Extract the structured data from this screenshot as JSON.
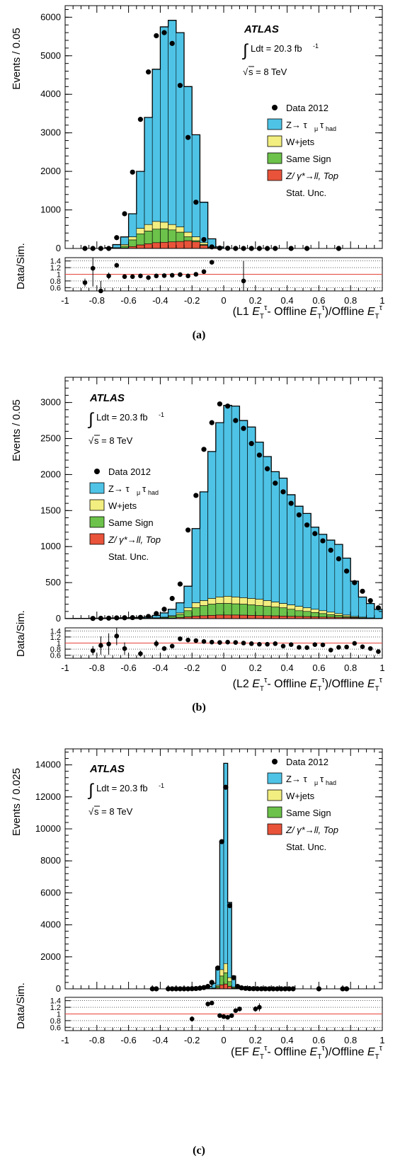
{
  "figure": {
    "atlas_label": "ATLAS",
    "lumi_label": "Ldt = 20.3 fb",
    "lumi_exp": "-1",
    "energy_label": "s = 8 TeV",
    "ratio_ylabel": "Data/Sim.",
    "legend": {
      "data": "Data 2012",
      "ztt": "Z→ τ",
      "ztt_sub1": "μ",
      "ztt_mid": "τ",
      "ztt_sub2": "had",
      "wjets": "W+jets",
      "ss": "Same Sign",
      "zll": "Z/ γ*→ll, Top",
      "unc": "Stat. Unc."
    },
    "colors": {
      "ztt": "#4ec3e6",
      "wjets": "#f2ee80",
      "ss": "#6cc24a",
      "zll": "#e8533a",
      "ratio_line": "#e8433a"
    }
  },
  "chart_data": [
    {
      "type": "bar",
      "panel": "a",
      "caption": "(a)",
      "xlabel_prefix": "(L1 ",
      "xlabel_suffix": "- Offline ",
      "xlabel_end": ")/Offline ",
      "ylabel": "Events / 0.05",
      "xlim": [
        -1,
        1
      ],
      "ylim": [
        0,
        6300
      ],
      "yticks": [
        0,
        1000,
        2000,
        3000,
        4000,
        5000,
        6000
      ],
      "xticks": [
        -1,
        -0.8,
        -0.6,
        -0.4,
        -0.2,
        0,
        0.2,
        0.4,
        0.6,
        0.8,
        1
      ],
      "ratio_ylim": [
        0.5,
        1.5
      ],
      "ratio_yticks": [
        0.6,
        0.8,
        1,
        1.2,
        1.4
      ],
      "legend_position": "right",
      "bin_width": 0.05,
      "bins_start": [
        -0.75,
        -0.7,
        -0.65,
        -0.6,
        -0.55,
        -0.5,
        -0.45,
        -0.4,
        -0.35,
        -0.3,
        -0.25,
        -0.2,
        -0.15,
        -0.1,
        -0.05
      ],
      "stack_total": [
        20,
        100,
        300,
        900,
        2000,
        3400,
        4650,
        5750,
        5920,
        5600,
        4200,
        2950,
        1200,
        250,
        40
      ],
      "stack_bkg": [
        5,
        20,
        100,
        300,
        520,
        620,
        700,
        680,
        620,
        560,
        420,
        300,
        150,
        40,
        10
      ],
      "stack_ss": [
        3,
        12,
        60,
        220,
        380,
        450,
        500,
        510,
        480,
        420,
        300,
        200,
        100,
        25,
        5
      ],
      "stack_zll": [
        1,
        4,
        15,
        50,
        90,
        120,
        150,
        160,
        170,
        180,
        200,
        170,
        80,
        20,
        3
      ],
      "data_x": [
        -0.875,
        -0.825,
        -0.775,
        -0.725,
        -0.675,
        -0.625,
        -0.575,
        -0.525,
        -0.475,
        -0.425,
        -0.375,
        -0.325,
        -0.275,
        -0.225,
        -0.175,
        -0.125,
        -0.075,
        -0.025,
        0.025,
        0.075,
        0.125,
        0.175,
        0.225,
        0.275,
        0.325,
        0.425,
        0.525,
        0.725
      ],
      "data_y": [
        0,
        0,
        0,
        0,
        280,
        900,
        1980,
        3350,
        4580,
        5520,
        5600,
        5320,
        4230,
        2880,
        1200,
        230,
        40,
        10,
        5,
        0,
        0,
        0,
        0,
        0,
        0,
        0,
        0,
        0
      ],
      "ratio_x": [
        -0.875,
        -0.825,
        -0.775,
        -0.725,
        -0.675,
        -0.625,
        -0.575,
        -0.525,
        -0.475,
        -0.425,
        -0.375,
        -0.325,
        -0.275,
        -0.225,
        -0.175,
        -0.125,
        -0.075,
        0.125
      ],
      "ratio_y": [
        0.75,
        1.18,
        0.5,
        0.95,
        1.27,
        0.93,
        0.93,
        0.95,
        0.9,
        0.95,
        0.96,
        0.97,
        0.99,
        0.95,
        1.0,
        1.08,
        1.36,
        0.8
      ],
      "ratio_err": [
        0.12,
        0.55,
        0.3,
        0.1,
        0.05,
        0.0,
        0.0,
        0.0,
        0.0,
        0.0,
        0.0,
        0.0,
        0.0,
        0.0,
        0.0,
        0.0,
        0.06,
        0.6
      ]
    },
    {
      "type": "bar",
      "panel": "b",
      "caption": "(b)",
      "xlabel_prefix": "(L2 ",
      "xlabel_suffix": "- Offline ",
      "xlabel_end": ")/Offline ",
      "ylabel": "Events / 0.05",
      "xlim": [
        -1,
        1
      ],
      "ylim": [
        0,
        3350
      ],
      "yticks": [
        0,
        500,
        1000,
        1500,
        2000,
        2500,
        3000
      ],
      "xticks": [
        -1,
        -0.8,
        -0.6,
        -0.4,
        -0.2,
        0,
        0.2,
        0.4,
        0.6,
        0.8,
        1
      ],
      "ratio_ylim": [
        0.5,
        1.5
      ],
      "ratio_yticks": [
        0.6,
        0.8,
        1,
        1.2,
        1.4
      ],
      "legend_position": "left",
      "bin_width": 0.05,
      "bins_start": [
        -1.0,
        -0.95,
        -0.9,
        -0.85,
        -0.8,
        -0.75,
        -0.7,
        -0.65,
        -0.6,
        -0.55,
        -0.5,
        -0.45,
        -0.4,
        -0.35,
        -0.3,
        -0.25,
        -0.2,
        -0.15,
        -0.1,
        -0.05,
        0.0,
        0.05,
        0.1,
        0.15,
        0.2,
        0.25,
        0.3,
        0.35,
        0.4,
        0.45,
        0.5,
        0.55,
        0.6,
        0.65,
        0.7,
        0.75,
        0.8,
        0.85,
        0.9,
        0.95
      ],
      "stack_total": [
        2,
        3,
        4,
        5,
        6,
        8,
        10,
        12,
        15,
        18,
        25,
        45,
        80,
        130,
        220,
        450,
        1250,
        1760,
        2320,
        2720,
        2960,
        2950,
        2750,
        2660,
        2450,
        2250,
        2040,
        1950,
        1720,
        1560,
        1460,
        1270,
        1170,
        1090,
        1030,
        840,
        520,
        300,
        210,
        130
      ],
      "stack_bkg": [
        0,
        0,
        0,
        0,
        1,
        1,
        2,
        3,
        4,
        6,
        8,
        12,
        20,
        40,
        80,
        150,
        220,
        250,
        280,
        300,
        310,
        300,
        290,
        280,
        270,
        250,
        230,
        210,
        190,
        170,
        150,
        130,
        110,
        90,
        70,
        50,
        30,
        20,
        10,
        5
      ],
      "stack_ss": [
        0,
        0,
        0,
        0,
        0,
        1,
        1,
        2,
        3,
        4,
        5,
        8,
        15,
        30,
        60,
        110,
        150,
        180,
        200,
        210,
        210,
        205,
        200,
        190,
        180,
        170,
        160,
        150,
        130,
        110,
        100,
        85,
        70,
        55,
        45,
        30,
        18,
        10,
        5,
        3
      ],
      "stack_zll": [
        0,
        0,
        0,
        0,
        0,
        0,
        0,
        1,
        1,
        1,
        2,
        3,
        5,
        8,
        15,
        25,
        35,
        40,
        45,
        50,
        50,
        50,
        48,
        45,
        42,
        40,
        38,
        35,
        32,
        30,
        28,
        25,
        22,
        20,
        18,
        15,
        10,
        7,
        5,
        3
      ],
      "data_x": [
        -0.825,
        -0.775,
        -0.725,
        -0.675,
        -0.625,
        -0.575,
        -0.525,
        -0.475,
        -0.425,
        -0.375,
        -0.325,
        -0.275,
        -0.225,
        -0.175,
        -0.125,
        -0.075,
        -0.025,
        0.025,
        0.075,
        0.125,
        0.175,
        0.225,
        0.275,
        0.325,
        0.375,
        0.425,
        0.475,
        0.525,
        0.575,
        0.625,
        0.675,
        0.725,
        0.775,
        0.825,
        0.875,
        0.925,
        0.975
      ],
      "data_y": [
        3,
        5,
        7,
        10,
        12,
        14,
        18,
        30,
        70,
        130,
        280,
        480,
        1230,
        1710,
        2350,
        2720,
        2980,
        2950,
        2750,
        2640,
        2430,
        2270,
        2080,
        1880,
        1760,
        1600,
        1440,
        1300,
        1180,
        1080,
        950,
        830,
        660,
        500,
        380,
        250,
        150
      ],
      "ratio_x": [
        -0.825,
        -0.775,
        -0.725,
        -0.675,
        -0.625,
        -0.525,
        -0.425,
        -0.375,
        -0.325,
        -0.275,
        -0.225,
        -0.175,
        -0.125,
        -0.075,
        -0.025,
        0.025,
        0.075,
        0.125,
        0.175,
        0.225,
        0.275,
        0.325,
        0.375,
        0.425,
        0.475,
        0.525,
        0.575,
        0.625,
        0.675,
        0.725,
        0.775,
        0.825,
        0.875,
        0.925,
        0.975
      ],
      "ratio_y": [
        0.75,
        0.92,
        0.97,
        1.23,
        0.82,
        0.65,
        0.98,
        0.82,
        0.9,
        1.14,
        1.1,
        1.08,
        1.05,
        1.03,
        1.02,
        1.03,
        1.02,
        1.0,
        0.98,
        0.96,
        0.96,
        0.98,
        0.9,
        0.95,
        0.86,
        0.85,
        0.95,
        0.94,
        0.77,
        0.86,
        0.87,
        0.99,
        0.88,
        0.82,
        0.72
      ],
      "ratio_err": [
        0.15,
        0.3,
        0.35,
        0.3,
        0.2,
        0.1,
        0.12,
        0.08,
        0.06,
        0.03,
        0.0,
        0.0,
        0.0,
        0.0,
        0.0,
        0.0,
        0.0,
        0.0,
        0.0,
        0.0,
        0.0,
        0.0,
        0.0,
        0.0,
        0.0,
        0.0,
        0.0,
        0.0,
        0.0,
        0.0,
        0.0,
        0.0,
        0.0,
        0.0,
        0.0
      ]
    },
    {
      "type": "bar",
      "panel": "c",
      "caption": "(c)",
      "xlabel_prefix": "(EF ",
      "xlabel_suffix": "- Offline ",
      "xlabel_end": ")/Offline ",
      "ylabel": "Events / 0.025",
      "xlim": [
        -1,
        1
      ],
      "ylim": [
        0,
        15000
      ],
      "yticks": [
        0,
        2000,
        4000,
        6000,
        8000,
        10000,
        12000,
        14000
      ],
      "xticks": [
        -1,
        -0.8,
        -0.6,
        -0.4,
        -0.2,
        0,
        0.2,
        0.4,
        0.6,
        0.8,
        1
      ],
      "ratio_ylim": [
        0.5,
        1.5
      ],
      "ratio_yticks": [
        0.6,
        0.8,
        1,
        1.2,
        1.4
      ],
      "legend_position": "right",
      "bin_width": 0.025,
      "bins_start": [
        -0.1,
        -0.075,
        -0.05,
        -0.025,
        0.0,
        0.025,
        0.05,
        0.075,
        0.1
      ],
      "stack_total": [
        150,
        350,
        1350,
        9200,
        14100,
        5400,
        800,
        200,
        60
      ],
      "stack_bkg": [
        20,
        50,
        220,
        1200,
        1580,
        700,
        120,
        30,
        10
      ],
      "stack_ss": [
        15,
        40,
        160,
        800,
        1000,
        450,
        80,
        20,
        5
      ],
      "stack_zll": [
        5,
        15,
        60,
        250,
        300,
        150,
        30,
        8,
        2
      ],
      "data_x": [
        -0.45,
        -0.425,
        -0.35,
        -0.325,
        -0.3,
        -0.275,
        -0.25,
        -0.225,
        -0.2,
        -0.175,
        -0.15,
        -0.125,
        -0.1,
        -0.075,
        -0.0375,
        -0.0125,
        0.0125,
        0.0375,
        0.0625,
        0.0875,
        0.1125,
        0.1375,
        0.1625,
        0.1875,
        0.2125,
        0.2375,
        0.2625,
        0.2875,
        0.3125,
        0.3375,
        0.3625,
        0.3875,
        0.4125,
        0.4375,
        0.6,
        0.75,
        0.775
      ],
      "data_y": [
        0,
        0,
        0,
        0,
        0,
        0,
        0,
        0,
        10,
        20,
        40,
        80,
        150,
        400,
        1300,
        9200,
        12600,
        5200,
        700,
        150,
        60,
        30,
        15,
        10,
        5,
        3,
        2,
        1,
        0,
        0,
        0,
        0,
        0,
        0,
        0,
        0,
        0
      ],
      "ratio_x": [
        -0.2,
        -0.1,
        -0.075,
        -0.025,
        0.0,
        0.025,
        0.05,
        0.075,
        0.1,
        0.2,
        0.225
      ],
      "ratio_y": [
        0.85,
        1.3,
        1.33,
        0.95,
        0.92,
        0.9,
        0.95,
        1.1,
        1.15,
        1.15,
        1.2
      ],
      "ratio_err": [
        0.08,
        0.03,
        0.02,
        0.0,
        0.0,
        0.0,
        0.0,
        0.03,
        0.04,
        0.08,
        0.12
      ]
    }
  ]
}
